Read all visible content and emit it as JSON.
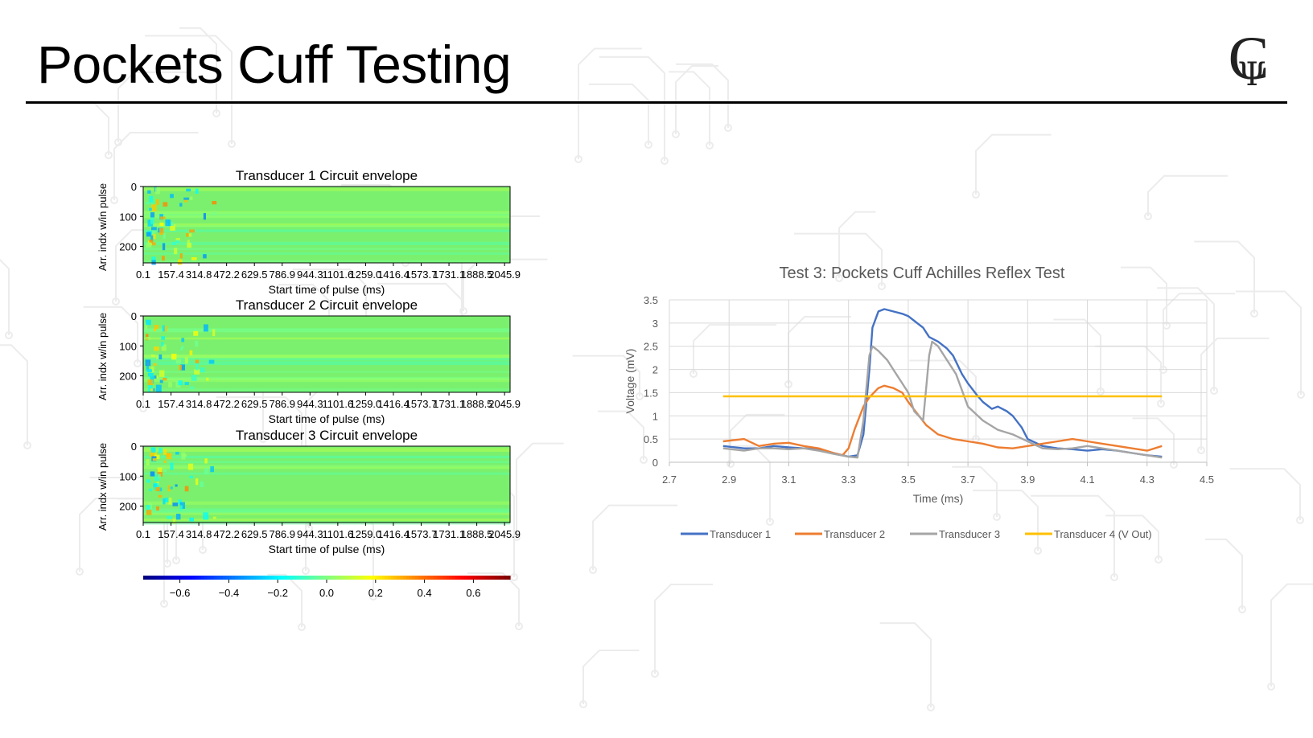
{
  "slide": {
    "title": "Pockets Cuff Testing"
  },
  "logo": {
    "letter": "C",
    "symbol": "Ψ"
  },
  "colors": {
    "background_pattern": "#ececec",
    "heatmap_base": "#7af06e",
    "t1": "#4472c4",
    "t2": "#ed7d31",
    "t3": "#a5a5a5",
    "t4": "#ffc000"
  },
  "chart_data": [
    {
      "type": "heatmap",
      "title": "Transducer 1 Circuit envelope",
      "xlabel": "Start time of pulse (ms)",
      "ylabel": "Arr. indx w/in pulse",
      "x_ticks": [
        "0.1",
        "157.4",
        "314.8",
        "472.2",
        "629.5",
        "786.9",
        "944.3",
        "1101.6",
        "1259.0",
        "1416.4",
        "1573.7",
        "1731.1",
        "1888.5",
        "2045.9"
      ],
      "y_ticks": [
        "0",
        "100",
        "200"
      ],
      "ylim": [
        0,
        255
      ],
      "note_values": "values near 0 across the map with stronger variation near the start",
      "colorbar_range": [
        -0.75,
        0.75
      ]
    },
    {
      "type": "heatmap",
      "title": "Transducer 2 Circuit envelope",
      "xlabel": "Start time of pulse (ms)",
      "ylabel": "Arr. indx w/in pulse",
      "x_ticks": [
        "0.1",
        "157.4",
        "314.8",
        "472.2",
        "629.5",
        "786.9",
        "944.3",
        "1101.6",
        "1259.0",
        "1416.4",
        "1573.7",
        "1731.1",
        "1888.5",
        "2045.9"
      ],
      "y_ticks": [
        "0",
        "100",
        "200"
      ],
      "ylim": [
        0,
        255
      ],
      "colorbar_range": [
        -0.75,
        0.75
      ]
    },
    {
      "type": "heatmap",
      "title": "Transducer 3 Circuit envelope",
      "xlabel": "Start time of pulse (ms)",
      "ylabel": "Arr. indx w/in pulse",
      "x_ticks": [
        "0.1",
        "157.4",
        "314.8",
        "472.2",
        "629.5",
        "786.9",
        "944.3",
        "1101.6",
        "1259.0",
        "1416.4",
        "1573.7",
        "1731.1",
        "1888.5",
        "2045.9"
      ],
      "y_ticks": [
        "0",
        "100",
        "200"
      ],
      "ylim": [
        0,
        255
      ],
      "colorbar_range": [
        -0.75,
        0.75
      ],
      "colorbar_ticks": [
        "−0.6",
        "−0.4",
        "−0.2",
        "0.0",
        "0.2",
        "0.4",
        "0.6"
      ]
    },
    {
      "type": "line",
      "title": "Test 3: Pockets Cuff Achilles Reflex Test",
      "xlabel": "Time (ms)",
      "ylabel": "Voltage (mV)",
      "xlim": [
        2.7,
        4.5
      ],
      "ylim": [
        0,
        3.5
      ],
      "x_ticks": [
        "2.7",
        "2.9",
        "3.1",
        "3.3",
        "3.5",
        "3.7",
        "3.9",
        "4.1",
        "4.3",
        "4.5"
      ],
      "y_ticks": [
        "0",
        "0.5",
        "1",
        "1.5",
        "2",
        "2.5",
        "3",
        "3.5"
      ],
      "grid": true,
      "legend": "bottom",
      "series": [
        {
          "name": "Transducer 1",
          "color": "#4472c4",
          "x": [
            2.88,
            2.95,
            3.0,
            3.05,
            3.1,
            3.15,
            3.2,
            3.25,
            3.3,
            3.33,
            3.35,
            3.37,
            3.38,
            3.4,
            3.42,
            3.45,
            3.48,
            3.5,
            3.52,
            3.55,
            3.57,
            3.6,
            3.63,
            3.65,
            3.68,
            3.7,
            3.73,
            3.75,
            3.78,
            3.8,
            3.83,
            3.85,
            3.88,
            3.9,
            3.95,
            4.0,
            4.05,
            4.1,
            4.15,
            4.2,
            4.25,
            4.3,
            4.35
          ],
          "y": [
            0.35,
            0.3,
            0.3,
            0.35,
            0.32,
            0.3,
            0.28,
            0.2,
            0.12,
            0.15,
            0.6,
            2.0,
            2.9,
            3.25,
            3.3,
            3.25,
            3.2,
            3.15,
            3.05,
            2.9,
            2.7,
            2.6,
            2.45,
            2.3,
            1.9,
            1.7,
            1.45,
            1.3,
            1.15,
            1.2,
            1.1,
            1.0,
            0.75,
            0.5,
            0.35,
            0.3,
            0.28,
            0.25,
            0.28,
            0.25,
            0.2,
            0.15,
            0.12
          ]
        },
        {
          "name": "Transducer 2",
          "color": "#ed7d31",
          "x": [
            2.88,
            2.95,
            3.0,
            3.05,
            3.1,
            3.15,
            3.2,
            3.25,
            3.28,
            3.3,
            3.32,
            3.35,
            3.37,
            3.4,
            3.42,
            3.45,
            3.48,
            3.5,
            3.53,
            3.56,
            3.6,
            3.65,
            3.7,
            3.75,
            3.8,
            3.85,
            3.9,
            3.95,
            4.0,
            4.05,
            4.1,
            4.15,
            4.2,
            4.25,
            4.3,
            4.35
          ],
          "y": [
            0.45,
            0.5,
            0.35,
            0.4,
            0.42,
            0.35,
            0.3,
            0.2,
            0.15,
            0.3,
            0.7,
            1.2,
            1.4,
            1.6,
            1.65,
            1.6,
            1.5,
            1.3,
            1.05,
            0.8,
            0.6,
            0.5,
            0.45,
            0.4,
            0.32,
            0.3,
            0.35,
            0.4,
            0.45,
            0.5,
            0.45,
            0.4,
            0.35,
            0.3,
            0.25,
            0.35
          ]
        },
        {
          "name": "Transducer 3",
          "color": "#a5a5a5",
          "x": [
            2.88,
            2.95,
            3.0,
            3.05,
            3.1,
            3.15,
            3.2,
            3.25,
            3.3,
            3.33,
            3.35,
            3.37,
            3.38,
            3.4,
            3.43,
            3.45,
            3.48,
            3.5,
            3.52,
            3.55,
            3.56,
            3.57,
            3.58,
            3.6,
            3.63,
            3.66,
            3.7,
            3.75,
            3.8,
            3.85,
            3.9,
            3.95,
            4.0,
            4.05,
            4.1,
            4.15,
            4.2,
            4.25,
            4.3,
            4.35
          ],
          "y": [
            0.3,
            0.25,
            0.3,
            0.3,
            0.28,
            0.3,
            0.25,
            0.18,
            0.12,
            0.1,
            0.9,
            2.3,
            2.5,
            2.4,
            2.2,
            2.0,
            1.7,
            1.5,
            1.1,
            0.9,
            1.6,
            2.3,
            2.6,
            2.5,
            2.2,
            1.9,
            1.2,
            0.9,
            0.7,
            0.6,
            0.45,
            0.3,
            0.28,
            0.3,
            0.35,
            0.3,
            0.25,
            0.2,
            0.15,
            0.1
          ]
        },
        {
          "name": "Transducer 4 (V Out)",
          "color": "#ffc000",
          "x": [
            2.88,
            4.35
          ],
          "y": [
            1.42,
            1.42
          ]
        }
      ]
    }
  ]
}
